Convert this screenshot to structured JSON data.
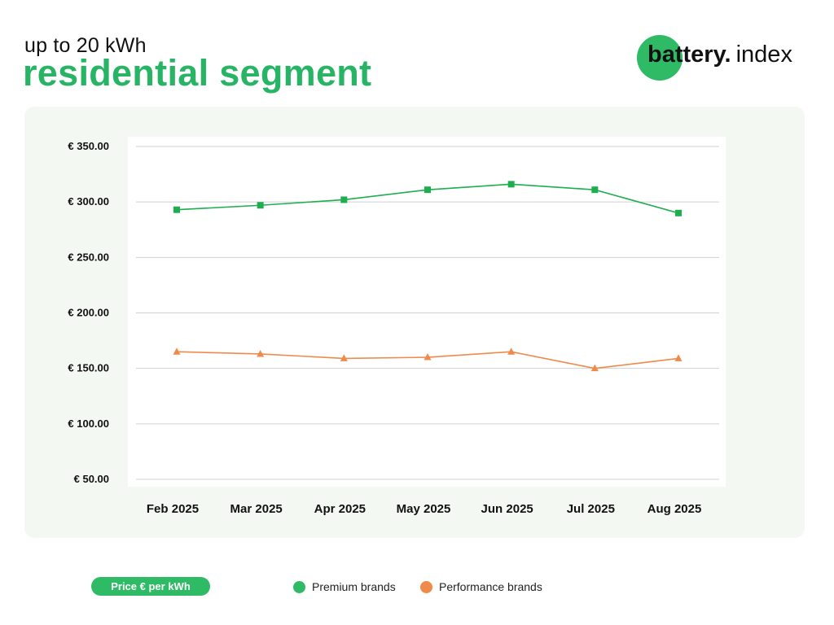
{
  "header": {
    "subtitle": "up to 20 kWh",
    "title": "residential segment"
  },
  "logo": {
    "bold": "battery.",
    "light": "index"
  },
  "footer": {
    "pill_label": "Price € per kWh"
  },
  "colors": {
    "accent": "#27b465",
    "premium": "#1fae4f",
    "performance": "#f08a4b",
    "panel": "#f4f8f3",
    "plot_bg": "#ffffff",
    "grid": "#d0d0d0"
  },
  "chart_data": {
    "type": "line",
    "categories": [
      "Feb 2025",
      "Mar 2025",
      "Apr 2025",
      "May 2025",
      "Jun 2025",
      "Jul 2025",
      "Aug 2025"
    ],
    "y_ticks": [
      {
        "value": 350,
        "label": "€ 350.00"
      },
      {
        "value": 300,
        "label": "€ 300.00"
      },
      {
        "value": 250,
        "label": "€ 250.00"
      },
      {
        "value": 200,
        "label": "€ 200.00"
      },
      {
        "value": 150,
        "label": "€ 150.00"
      },
      {
        "value": 100,
        "label": "€ 100.00"
      },
      {
        "value": 50,
        "label": "€ 50.00"
      }
    ],
    "ylim": [
      50,
      350
    ],
    "grid": true,
    "legend_position": "bottom",
    "series": [
      {
        "name": "Premium brands",
        "marker": "square",
        "color": "#1fae4f",
        "values": [
          293,
          297,
          302,
          311,
          316,
          311,
          290
        ]
      },
      {
        "name": "Performance brands",
        "marker": "triangle",
        "color": "#f08a4b",
        "values": [
          165,
          163,
          159,
          160,
          165,
          150,
          159
        ]
      }
    ]
  }
}
